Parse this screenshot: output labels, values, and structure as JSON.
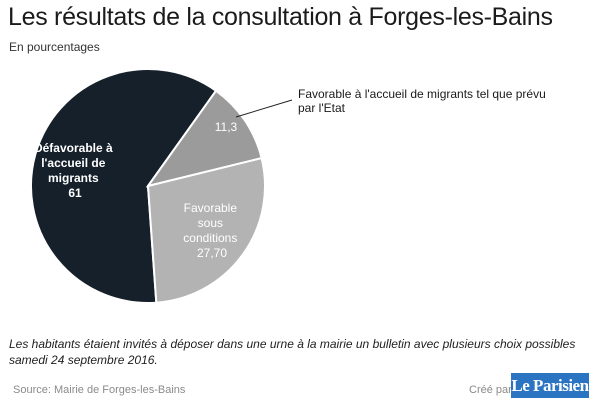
{
  "title": "Les résultats de la consultation à Forges-les-Bains",
  "subtitle": "En pourcentages",
  "chart_data": {
    "type": "pie",
    "title": "Les résultats de la consultation à Forges-les-Bains",
    "subtitle": "En pourcentages",
    "slices": [
      {
        "label": "Défavorable à l'accueil de migrants",
        "value": 61,
        "value_label": "61",
        "color": "#15202b"
      },
      {
        "label": "Favorable à l'accueil de migrants tel que prévu par l'Etat",
        "value": 11.3,
        "value_label": "11,3",
        "color": "#9b9b9b"
      },
      {
        "label": "Favorable sous conditions",
        "value": 27.7,
        "value_label": "27,70",
        "color": "#b3b3b3"
      }
    ]
  },
  "labels": {
    "defavorable": [
      "Défavorable à",
      "l'accueil de",
      "migrants",
      "61"
    ],
    "favorable_etat_callout": [
      "Favorable à l'accueil de migrants tel que prévu",
      "par l'Etat"
    ],
    "favorable_etat_value": "11,3",
    "sous_conditions": [
      "Favorable",
      "sous",
      "conditions",
      "27,70"
    ]
  },
  "note": "Les habitants étaient invités à déposer dans une urne à la mairie un bulletin avec plusieurs choix possibles samedi 24 septembre 2016.",
  "source": "Source: Mairie de Forges-les-Bains",
  "credit": "Créé par",
  "logo": "Le Parisien"
}
